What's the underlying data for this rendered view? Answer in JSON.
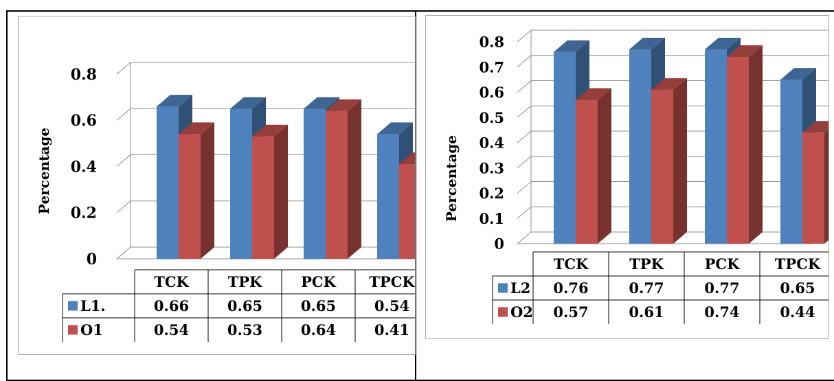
{
  "chart_data": [
    {
      "type": "bar",
      "title": "",
      "xlabel": "",
      "ylabel": "Percentage",
      "categories": [
        "TCK",
        "TPK",
        "PCK",
        "TPCK"
      ],
      "series": [
        {
          "name": "L1.",
          "values": [
            0.66,
            0.65,
            0.65,
            0.54
          ],
          "color": "#4f81bd"
        },
        {
          "name": "O1",
          "values": [
            0.54,
            0.53,
            0.64,
            0.41
          ],
          "color": "#c0504d"
        }
      ],
      "ylim": [
        0,
        0.8
      ],
      "yticks": [
        "0",
        "0.2",
        "0.4",
        "0.6",
        "0.8"
      ],
      "data_table": true,
      "grid": true
    },
    {
      "type": "bar",
      "title": "",
      "xlabel": "",
      "ylabel": "Percentage",
      "categories": [
        "TCK",
        "TPK",
        "PCK",
        "TPCK"
      ],
      "series": [
        {
          "name": "L2",
          "values": [
            0.76,
            0.77,
            0.77,
            0.65
          ],
          "color": "#4f81bd"
        },
        {
          "name": "O2",
          "values": [
            0.57,
            0.61,
            0.74,
            0.44
          ],
          "color": "#c0504d"
        }
      ],
      "ylim": [
        0,
        0.8
      ],
      "yticks": [
        "0",
        "0.1",
        "0.2",
        "0.3",
        "0.4",
        "0.5",
        "0.6",
        "0.7",
        "0.8"
      ],
      "data_table": true,
      "grid": true
    }
  ]
}
